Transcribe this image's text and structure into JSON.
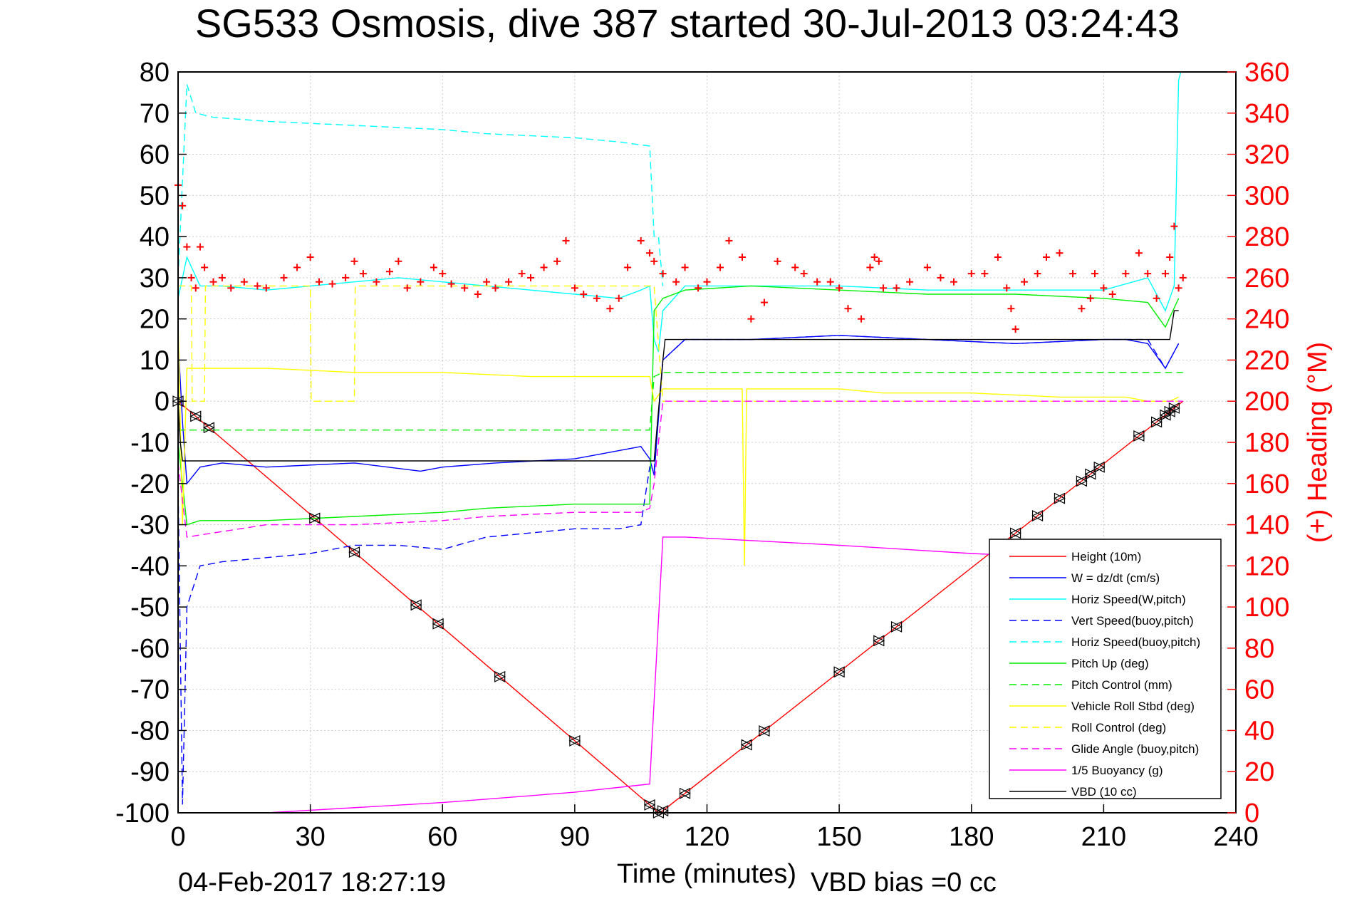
{
  "chart_data": {
    "type": "line",
    "title": "SG533 Osmosis, dive 387 started 30-Jul-2013 03:24:43",
    "xlabel": "Time (minutes)",
    "ylabel": "",
    "y2label": "(+) Heading (°M)",
    "footer_date": "04-Feb-2017 18:27:19",
    "footer_vbd": "VBD bias =0 cc",
    "xlim": [
      0,
      240
    ],
    "ylim": [
      -100,
      80
    ],
    "y2lim": [
      0,
      360
    ],
    "x_ticks": [
      "0",
      "30",
      "60",
      "90",
      "120",
      "150",
      "180",
      "210",
      "240"
    ],
    "y_ticks": [
      "80",
      "70",
      "60",
      "50",
      "40",
      "30",
      "20",
      "10",
      "0",
      "-10",
      "-20",
      "-30",
      "-40",
      "-50",
      "-60",
      "-70",
      "-80",
      "-90",
      "-100"
    ],
    "y2_ticks": [
      "360",
      "340",
      "320",
      "300",
      "280",
      "260",
      "240",
      "220",
      "200",
      "180",
      "160",
      "140",
      "120",
      "100",
      "80",
      "60",
      "40",
      "20",
      "0"
    ],
    "grid": true,
    "legend_position": "bottom-right",
    "series": [
      {
        "name": "Height (10m)",
        "color": "#ff0000",
        "dash": "solid",
        "x": [
          0,
          108,
          109,
          110,
          228
        ],
        "y": [
          0,
          -99,
          -100,
          -99.5,
          0
        ]
      },
      {
        "name": "W = dz/dt (cm/s)",
        "color": "#0000ff",
        "dash": "solid",
        "x": [
          0,
          1,
          2,
          5,
          10,
          20,
          40,
          55,
          60,
          72,
          90,
          100,
          105,
          107,
          108,
          110,
          115,
          130,
          150,
          170,
          190,
          210,
          215,
          220,
          224,
          227
        ],
        "y": [
          15,
          -5,
          -20,
          -16,
          -15,
          -16,
          -15,
          -17,
          -16,
          -15,
          -14,
          -12,
          -11,
          -14,
          -18,
          10,
          15,
          15,
          16,
          15,
          14,
          15,
          15,
          14,
          8,
          14
        ]
      },
      {
        "name": "Horiz Speed(W,pitch)",
        "color": "#00ffff",
        "dash": "solid",
        "x": [
          0,
          2,
          5,
          10,
          20,
          30,
          40,
          50,
          60,
          70,
          80,
          90,
          100,
          105,
          107,
          108,
          109,
          110,
          115,
          130,
          150,
          170,
          190,
          210,
          220,
          224,
          226,
          227,
          227.5
        ],
        "y": [
          25,
          35,
          28,
          28,
          27,
          28,
          29,
          30,
          29,
          28,
          27,
          26,
          25,
          27,
          28,
          15,
          12,
          22,
          28,
          28,
          28,
          27,
          27,
          27,
          30,
          22,
          28,
          78,
          80
        ]
      },
      {
        "name": "Vert Speed(buoy,pitch)",
        "color": "#0000ff",
        "dash": "dash",
        "x": [
          0,
          1,
          2,
          5,
          10,
          20,
          30,
          40,
          50,
          60,
          70,
          80,
          90,
          100,
          105,
          107,
          108,
          110,
          115,
          130,
          150,
          170,
          190,
          210,
          220,
          224,
          227
        ],
        "y": [
          -20,
          -98,
          -50,
          -40,
          -39,
          -38,
          -37,
          -35,
          -35,
          -36,
          -33,
          -32,
          -31,
          -31,
          -30,
          -16,
          -17,
          10,
          15,
          15,
          16,
          15,
          14,
          15,
          15,
          8,
          14
        ]
      },
      {
        "name": "Horiz Speed(buoy,pitch)",
        "color": "#00ffff",
        "dash": "dash",
        "x": [
          0,
          2,
          4,
          8,
          20,
          40,
          60,
          70,
          90,
          100,
          107,
          108,
          109,
          110
        ],
        "y": [
          30,
          77,
          70,
          69,
          68,
          67,
          66,
          65,
          64,
          63,
          62,
          40,
          40,
          28
        ]
      },
      {
        "name": "Pitch Up (deg)",
        "color": "#00ee00",
        "dash": "solid",
        "x": [
          0,
          2,
          5,
          20,
          40,
          60,
          70,
          90,
          105,
          107,
          108,
          110,
          115,
          130,
          150,
          170,
          190,
          210,
          220,
          224,
          227
        ],
        "y": [
          -10,
          -30,
          -29,
          -29,
          -28,
          -27,
          -26,
          -25,
          -25,
          -25,
          22,
          25,
          27,
          28,
          27,
          26,
          26,
          25,
          24,
          18,
          25
        ]
      },
      {
        "name": "Pitch Control (mm)",
        "color": "#00ee00",
        "dash": "dash",
        "x": [
          0,
          2,
          107,
          108,
          110,
          228
        ],
        "y": [
          -7,
          -7,
          -7,
          6,
          7,
          7
        ]
      },
      {
        "name": "Vehicle Roll Stbd (deg)",
        "color": "#ffff00",
        "dash": "solid",
        "x": [
          0,
          1,
          2,
          5,
          20,
          40,
          60,
          80,
          100,
          107,
          108,
          110,
          115,
          128,
          128.5,
          129,
          150,
          160,
          180,
          200,
          215,
          220,
          225,
          227
        ],
        "y": [
          20,
          -30,
          8,
          8,
          8,
          7,
          7,
          6,
          6,
          6,
          0,
          3,
          3,
          3,
          -40,
          3,
          3,
          2,
          2,
          1,
          1,
          0,
          0,
          1
        ]
      },
      {
        "name": "Roll Control (deg)",
        "color": "#ffff00",
        "dash": "dash",
        "x": [
          0,
          3,
          3.2,
          6,
          6.2,
          30,
          30.2,
          40,
          40.2,
          108,
          110,
          228
        ],
        "y": [
          28,
          28,
          0,
          0,
          28,
          28,
          0,
          0,
          28,
          28,
          0,
          0
        ]
      },
      {
        "name": "Glide Angle (buoy,pitch)",
        "color": "#ff00ff",
        "dash": "dash",
        "x": [
          0,
          2,
          20,
          40,
          60,
          70,
          90,
          105,
          107,
          108,
          110,
          228
        ],
        "y": [
          -15,
          -33,
          -30,
          -30,
          -29,
          -28,
          -27,
          -27,
          -26,
          -20,
          0,
          0
        ]
      },
      {
        "name": "1/5 Buoyancy (g)",
        "color": "#ff00ff",
        "dash": "solid",
        "x": [
          20,
          60,
          90,
          107,
          110,
          115,
          150,
          180,
          190
        ],
        "y": [
          -100,
          -97.5,
          -95,
          -93,
          -33,
          -33,
          -35,
          -37,
          -37.5
        ]
      },
      {
        "name": "VBD (10 cc)",
        "color": "#000000",
        "dash": "solid",
        "x": [
          0,
          0.5,
          1,
          108,
          110,
          110.5,
          225,
          226,
          227
        ],
        "y": [
          0,
          -10,
          -14.5,
          -14.5,
          10,
          15,
          15,
          22,
          22
        ]
      }
    ],
    "heading": {
      "name": "(+) Heading (°M)",
      "color": "#ff0000",
      "marker": "+",
      "axis": "right",
      "x": [
        0,
        1,
        2,
        3,
        4,
        5,
        6,
        8,
        10,
        12,
        15,
        18,
        20,
        24,
        27,
        30,
        32,
        35,
        38,
        40,
        42,
        45,
        48,
        50,
        52,
        55,
        58,
        60,
        62,
        65,
        68,
        70,
        72,
        75,
        78,
        80,
        83,
        86,
        88,
        90,
        92,
        95,
        98,
        100,
        102,
        105,
        107,
        108,
        110,
        113,
        115,
        118,
        120,
        123,
        125,
        128,
        130,
        133,
        136,
        140,
        142,
        145,
        148,
        150,
        152,
        155,
        157,
        158,
        159,
        160,
        163,
        166,
        170,
        173,
        176,
        180,
        183,
        186,
        188,
        189,
        190,
        192,
        195,
        197,
        200,
        203,
        205,
        207,
        208,
        210,
        212,
        215,
        218,
        220,
        222,
        224,
        225,
        226,
        227,
        228
      ],
      "y": [
        305,
        295,
        275,
        260,
        255,
        275,
        265,
        258,
        260,
        255,
        258,
        256,
        255,
        260,
        265,
        270,
        258,
        257,
        260,
        268,
        262,
        258,
        263,
        268,
        255,
        258,
        265,
        262,
        257,
        255,
        252,
        258,
        255,
        258,
        262,
        260,
        265,
        268,
        278,
        255,
        252,
        250,
        245,
        250,
        265,
        278,
        272,
        268,
        262,
        258,
        265,
        255,
        258,
        265,
        278,
        270,
        240,
        248,
        268,
        265,
        262,
        258,
        258,
        255,
        245,
        240,
        265,
        270,
        268,
        255,
        255,
        258,
        265,
        260,
        258,
        262,
        262,
        270,
        255,
        245,
        235,
        258,
        262,
        270,
        272,
        262,
        245,
        250,
        262,
        255,
        252,
        262,
        272,
        262,
        250,
        262,
        270,
        285,
        255,
        260
      ]
    }
  }
}
